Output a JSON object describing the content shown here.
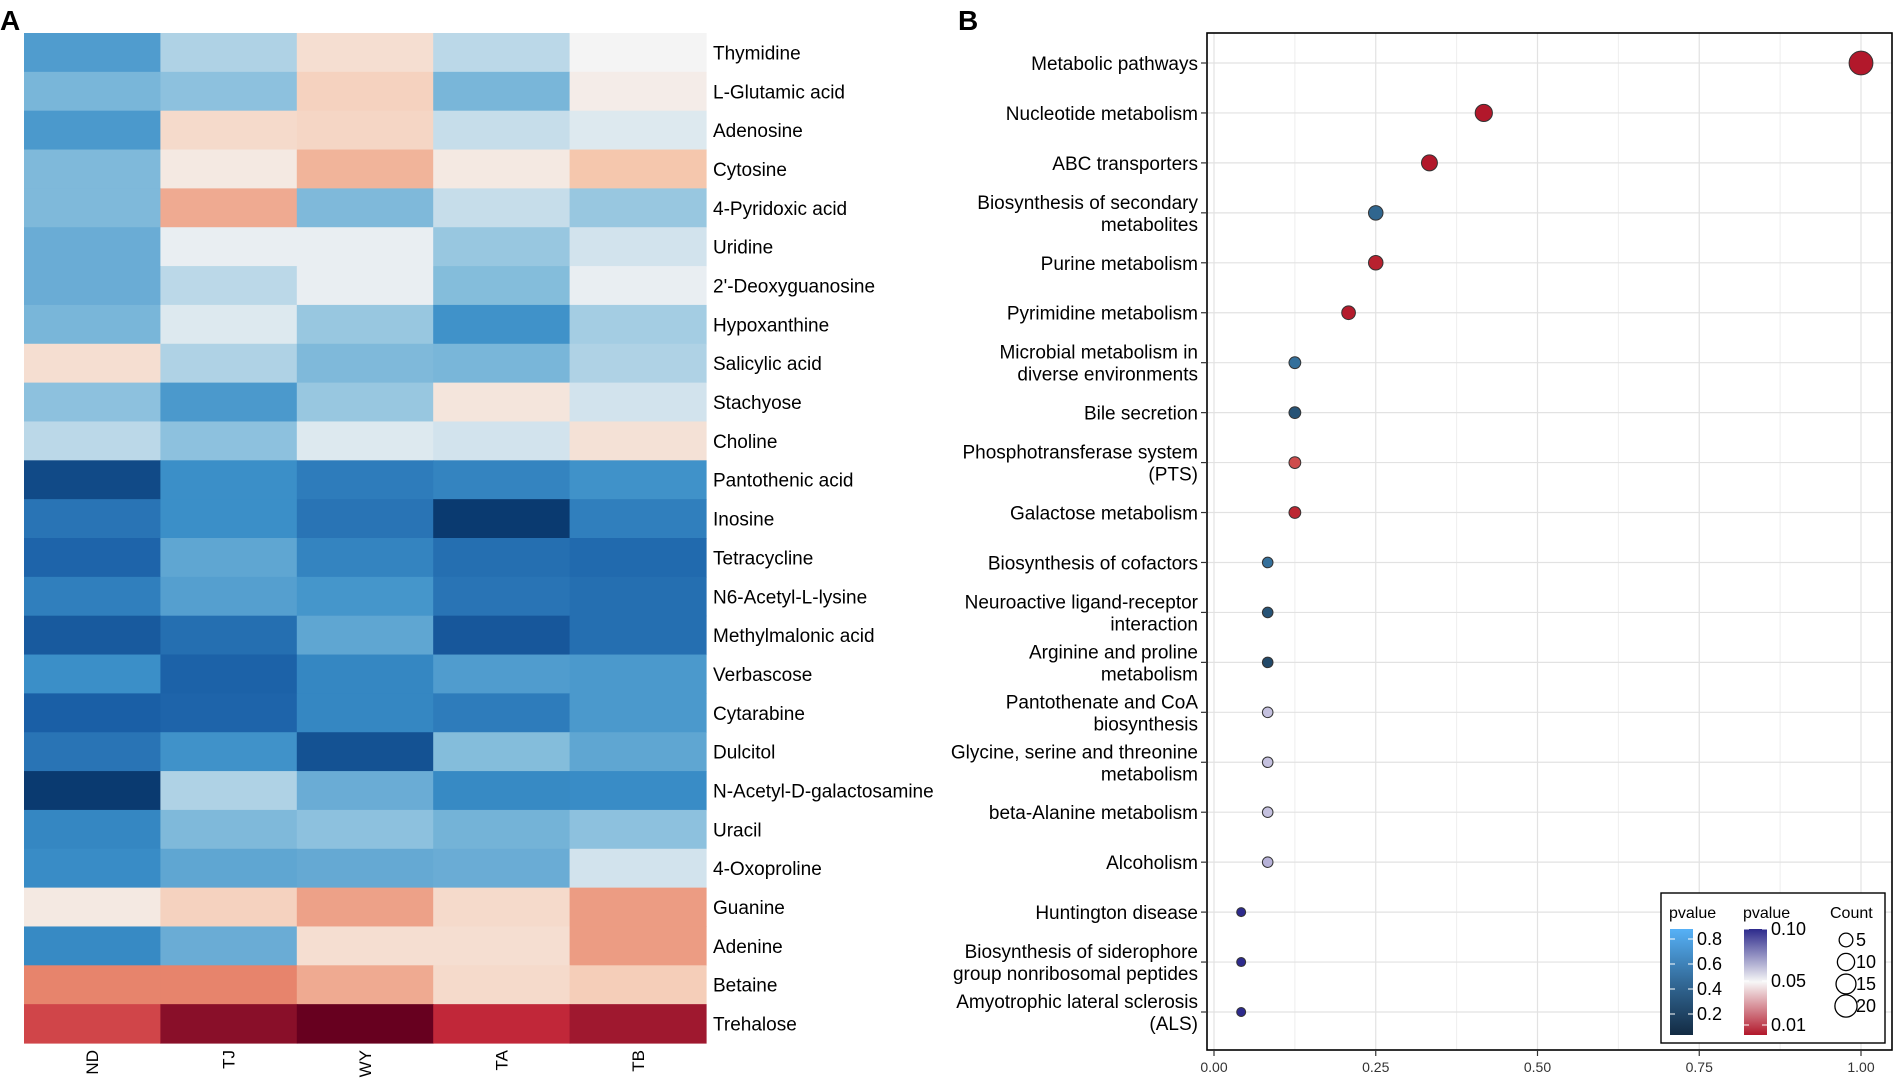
{
  "figure": {
    "panel_a_label": "A",
    "panel_b_label": "B"
  },
  "chart_data": [
    {
      "type": "heatmap",
      "title": "",
      "columns": [
        "ND",
        "TJ",
        "WY",
        "TA",
        "TB"
      ],
      "rows": [
        "Thymidine",
        "L-Glutamic acid",
        "Adenosine",
        "Cytosine",
        "4-Pyridoxic acid",
        "Uridine",
        "2'-Deoxyguanosine",
        "Hypoxanthine",
        "Salicylic acid",
        "Stachyose",
        "Choline",
        "Pantothenic acid",
        "Inosine",
        "Tetracycline",
        "N6-Acetyl-L-lysine",
        "Methylmalonic acid",
        "Verbascose",
        "Cytarabine",
        "Dulcitol",
        "N-Acetyl-D-galactosamine",
        "Uracil",
        "4-Oxoproline",
        "Guanine",
        "Adenine",
        "Betaine",
        "Trehalose"
      ],
      "values": [
        [
          -1.0,
          -0.3,
          0.3,
          -0.25,
          0.0
        ],
        [
          -0.6,
          -0.45,
          0.45,
          -0.6,
          0.1
        ],
        [
          -1.05,
          0.35,
          0.4,
          -0.2,
          -0.1
        ],
        [
          -0.55,
          0.15,
          0.8,
          0.15,
          0.6
        ],
        [
          -0.55,
          0.9,
          -0.55,
          -0.2,
          -0.4
        ],
        [
          -0.75,
          -0.05,
          -0.05,
          -0.4,
          -0.15
        ],
        [
          -0.75,
          -0.25,
          -0.05,
          -0.5,
          -0.05
        ],
        [
          -0.6,
          -0.1,
          -0.4,
          -1.15,
          -0.35
        ],
        [
          0.3,
          -0.3,
          -0.55,
          -0.6,
          -0.3
        ],
        [
          -0.45,
          -1.05,
          -0.4,
          0.2,
          -0.15
        ],
        [
          -0.25,
          -0.45,
          -0.1,
          -0.15,
          0.25
        ],
        [
          -2.5,
          -1.2,
          -1.55,
          -1.4,
          -1.15
        ],
        [
          -1.7,
          -1.2,
          -1.7,
          -2.8,
          -1.5
        ],
        [
          -2.0,
          -0.85,
          -1.4,
          -1.8,
          -1.9
        ],
        [
          -1.5,
          -0.95,
          -1.1,
          -1.7,
          -1.8
        ],
        [
          -2.2,
          -1.8,
          -0.85,
          -2.25,
          -1.8
        ],
        [
          -1.2,
          -2.05,
          -1.35,
          -1.0,
          -1.05
        ],
        [
          -2.1,
          -2.0,
          -1.35,
          -1.55,
          -1.05
        ],
        [
          -1.7,
          -1.15,
          -2.35,
          -0.5,
          -0.85
        ],
        [
          -2.8,
          -0.3,
          -0.75,
          -1.3,
          -1.25
        ],
        [
          -1.35,
          -0.55,
          -0.45,
          -0.65,
          -0.45
        ],
        [
          -1.25,
          -0.85,
          -0.8,
          -0.75,
          -0.15
        ],
        [
          0.15,
          0.45,
          1.0,
          0.35,
          1.05
        ],
        [
          -1.3,
          -0.75,
          0.3,
          0.3,
          1.05
        ],
        [
          1.3,
          1.3,
          0.9,
          0.35,
          0.5
        ],
        [
          1.9,
          2.7,
          3.0,
          2.2,
          2.5
        ]
      ]
    },
    {
      "type": "scatter",
      "title": "",
      "xlabel": "",
      "ylabel": "",
      "xlim": [
        0,
        1.0
      ],
      "xticks": [
        "0.00",
        "0.25",
        "0.50",
        "0.75",
        "1.00"
      ],
      "grid": true,
      "pathways": [
        {
          "name": "Metabolic pathways",
          "lines": [
            "Metabolic pathways"
          ],
          "x": 1.0,
          "count": 24,
          "pvalue": 0.005
        },
        {
          "name": "Nucleotide metabolism",
          "lines": [
            "Nucleotide metabolism"
          ],
          "x": 0.417,
          "count": 10,
          "pvalue": 0.005
        },
        {
          "name": "ABC transporters",
          "lines": [
            "ABC transporters"
          ],
          "x": 0.333,
          "count": 8,
          "pvalue": 0.005
        },
        {
          "name": "Biosynthesis of secondary metabolites",
          "lines": [
            "Biosynthesis of secondary",
            "metabolites"
          ],
          "x": 0.25,
          "count": 6,
          "pvalue": 0.4
        },
        {
          "name": "Purine metabolism",
          "lines": [
            "Purine metabolism"
          ],
          "x": 0.25,
          "count": 6,
          "pvalue": 0.008
        },
        {
          "name": "Pyrimidine metabolism",
          "lines": [
            "Pyrimidine metabolism"
          ],
          "x": 0.208,
          "count": 5,
          "pvalue": 0.006
        },
        {
          "name": "Microbial metabolism in diverse environments",
          "lines": [
            "Microbial metabolism in",
            "diverse environments"
          ],
          "x": 0.125,
          "count": 3,
          "pvalue": 0.45
        },
        {
          "name": "Bile secretion",
          "lines": [
            "Bile secretion"
          ],
          "x": 0.125,
          "count": 3,
          "pvalue": 0.3
        },
        {
          "name": "Phosphotransferase system (PTS)",
          "lines": [
            "Phosphotransferase system",
            "(PTS)"
          ],
          "x": 0.125,
          "count": 3,
          "pvalue": 0.02
        },
        {
          "name": "Galactose metabolism",
          "lines": [
            "Galactose metabolism"
          ],
          "x": 0.125,
          "count": 3,
          "pvalue": 0.01
        },
        {
          "name": "Biosynthesis of cofactors",
          "lines": [
            "Biosynthesis of cofactors"
          ],
          "x": 0.083,
          "count": 2,
          "pvalue": 0.45
        },
        {
          "name": "Neuroactive ligand-receptor interaction",
          "lines": [
            "Neuroactive ligand-receptor",
            "interaction"
          ],
          "x": 0.083,
          "count": 2,
          "pvalue": 0.3
        },
        {
          "name": "Arginine and proline metabolism",
          "lines": [
            "Arginine and proline",
            "metabolism"
          ],
          "x": 0.083,
          "count": 2,
          "pvalue": 0.25
        },
        {
          "name": "Pantothenate and CoA biosynthesis",
          "lines": [
            "Pantothenate and CoA",
            "biosynthesis"
          ],
          "x": 0.083,
          "count": 2,
          "pvalue": 0.07
        },
        {
          "name": "Glycine, serine and threonine metabolism",
          "lines": [
            "Glycine, serine and threonine",
            "metabolism"
          ],
          "x": 0.083,
          "count": 2,
          "pvalue": 0.07
        },
        {
          "name": "beta-Alanine metabolism",
          "lines": [
            "beta-Alanine metabolism"
          ],
          "x": 0.083,
          "count": 2,
          "pvalue": 0.07
        },
        {
          "name": "Alcoholism",
          "lines": [
            "Alcoholism"
          ],
          "x": 0.083,
          "count": 2,
          "pvalue": 0.075
        },
        {
          "name": "Huntington disease",
          "lines": [
            "Huntington disease"
          ],
          "x": 0.042,
          "count": 1,
          "pvalue": 0.1
        },
        {
          "name": "Biosynthesis of siderophore group nonribosomal peptides",
          "lines": [
            "Biosynthesis of siderophore",
            "group nonribosomal peptides"
          ],
          "x": 0.042,
          "count": 1,
          "pvalue": 0.1
        },
        {
          "name": "Amyotrophic lateral sclerosis (ALS)",
          "lines": [
            "Amyotrophic lateral sclerosis",
            "(ALS)"
          ],
          "x": 0.042,
          "count": 1,
          "pvalue": 0.1
        }
      ],
      "legend": {
        "position": "bottom-right",
        "pvalue_blue": {
          "title": "pvalue",
          "labels": [
            "0.8",
            "0.6",
            "0.4",
            "0.2"
          ]
        },
        "pvalue_red": {
          "title": "pvalue",
          "labels": [
            "0.10",
            "0.05",
            "0.01"
          ]
        },
        "count": {
          "title": "Count",
          "labels": [
            "5",
            "10",
            "15",
            "20"
          ]
        }
      }
    }
  ]
}
